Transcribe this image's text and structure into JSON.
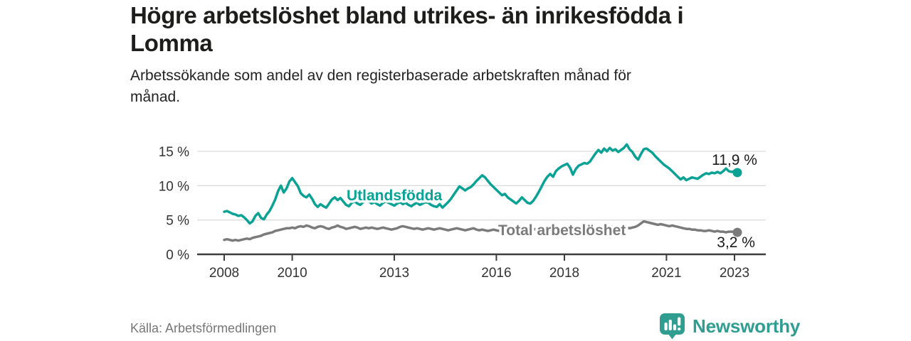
{
  "header": {
    "title_line1": "Högre arbetslöshet bland utrikes- än inrikesfödda i",
    "title_line2": "Lomma",
    "subtitle_line1": "Arbetssökande som andel av den registerbaserade arbetskraften månad för",
    "subtitle_line2": "månad."
  },
  "footer": {
    "source": "Källa: Arbetsförmedlingen",
    "brand": "Newsworthy",
    "brand_color": "#2f9e90"
  },
  "chart_data": {
    "type": "line",
    "x_interval": "monthly",
    "x_start_year": 2008,
    "x_start_month": 1,
    "x_end_label": "2023-02",
    "x_tick_years": [
      2008,
      2010,
      2013,
      2016,
      2018,
      2021,
      2023
    ],
    "y_ticks": [
      0,
      5,
      10,
      15
    ],
    "y_tick_suffix": " %",
    "ylim": [
      0,
      16.5
    ],
    "grid": true,
    "legend": "inline-labels",
    "axis_color": "#3d3d3d",
    "grid_color": "#dcdcdc",
    "tick_text_color": "#333333",
    "end_label_color": "#1a1a1a",
    "series": [
      {
        "name": "Utlandsfödda",
        "color": "#0aa294",
        "end_label": "11,9 %",
        "end_value": 11.9,
        "values": [
          6.2,
          6.3,
          6.1,
          5.9,
          5.8,
          5.6,
          5.7,
          5.4,
          5.0,
          4.5,
          4.8,
          5.6,
          6.0,
          5.3,
          5.1,
          5.8,
          6.3,
          7.1,
          8.0,
          9.2,
          10.0,
          9.0,
          9.6,
          10.6,
          11.1,
          10.5,
          9.9,
          8.9,
          8.5,
          8.3,
          8.7,
          8.1,
          7.3,
          6.9,
          7.3,
          7.0,
          6.8,
          7.4,
          8.0,
          8.3,
          7.9,
          8.2,
          7.7,
          7.2,
          7.0,
          7.5,
          7.7,
          7.4,
          7.2,
          7.6,
          7.9,
          7.7,
          7.4,
          7.6,
          7.3,
          7.1,
          7.5,
          7.7,
          7.5,
          7.3,
          7.1,
          7.4,
          7.6,
          7.3,
          7.5,
          7.2,
          7.0,
          7.3,
          7.5,
          7.2,
          7.4,
          7.6,
          7.5,
          7.2,
          7.0,
          6.9,
          7.3,
          6.8,
          7.2,
          7.6,
          8.1,
          8.7,
          9.3,
          9.9,
          9.6,
          9.3,
          9.6,
          9.8,
          10.2,
          10.7,
          11.1,
          11.5,
          11.2,
          10.7,
          10.2,
          9.8,
          9.4,
          9.0,
          8.6,
          8.8,
          8.3,
          8.0,
          7.7,
          7.4,
          7.8,
          8.3,
          7.9,
          7.5,
          7.4,
          7.8,
          8.4,
          9.1,
          9.9,
          10.7,
          11.3,
          11.7,
          11.3,
          12.1,
          12.5,
          12.8,
          13.0,
          13.2,
          12.6,
          11.6,
          12.4,
          12.9,
          13.1,
          13.3,
          13.2,
          13.5,
          14.1,
          14.7,
          15.2,
          14.8,
          15.4,
          15.0,
          15.5,
          15.1,
          15.3,
          14.9,
          15.2,
          15.5,
          16.0,
          15.3,
          14.9,
          14.2,
          13.8,
          14.6,
          15.3,
          15.4,
          15.1,
          14.8,
          14.3,
          13.9,
          13.5,
          13.1,
          12.8,
          12.5,
          12.1,
          11.7,
          11.3,
          10.9,
          11.2,
          10.8,
          11.0,
          11.2,
          11.1,
          11.0,
          11.3,
          11.6,
          11.8,
          11.7,
          11.9,
          11.8,
          12.0,
          11.8,
          12.1,
          12.5,
          12.1,
          12.0,
          12.1,
          11.9
        ]
      },
      {
        "name": "Total arbetslöshet",
        "color": "#7b7b7b",
        "end_label": "3,2 %",
        "end_value": 3.2,
        "values": [
          2.1,
          2.2,
          2.1,
          2.0,
          2.1,
          2.0,
          2.1,
          2.2,
          2.3,
          2.2,
          2.4,
          2.5,
          2.6,
          2.7,
          2.9,
          3.0,
          3.1,
          3.2,
          3.4,
          3.5,
          3.6,
          3.7,
          3.8,
          3.8,
          3.9,
          3.8,
          4.0,
          4.1,
          4.0,
          4.2,
          4.1,
          3.9,
          3.8,
          4.0,
          4.1,
          4.0,
          3.8,
          3.7,
          3.9,
          4.0,
          4.2,
          4.0,
          3.9,
          3.7,
          3.8,
          3.9,
          4.0,
          3.9,
          3.7,
          3.8,
          3.9,
          3.8,
          3.9,
          3.8,
          3.7,
          3.8,
          3.9,
          3.8,
          3.7,
          3.6,
          3.7,
          3.8,
          4.0,
          4.1,
          4.0,
          3.9,
          3.8,
          3.7,
          3.8,
          3.7,
          3.6,
          3.7,
          3.8,
          3.7,
          3.6,
          3.7,
          3.8,
          3.7,
          3.6,
          3.5,
          3.6,
          3.7,
          3.8,
          3.7,
          3.6,
          3.5,
          3.6,
          3.7,
          3.8,
          3.6,
          3.5,
          3.6,
          3.5,
          3.4,
          3.5,
          3.6,
          3.5,
          3.4,
          3.5,
          3.6,
          3.7,
          3.6,
          3.5,
          3.4,
          3.5,
          3.6,
          3.5,
          3.4,
          3.5,
          3.6,
          3.7,
          3.8,
          3.7,
          3.8,
          3.9,
          3.8,
          3.7,
          3.8,
          3.9,
          3.8,
          3.7,
          3.8,
          3.7,
          3.6,
          3.7,
          3.8,
          3.7,
          3.6,
          3.7,
          3.8,
          3.9,
          3.8,
          3.9,
          3.8,
          3.9,
          4.0,
          3.9,
          4.0,
          3.9,
          4.0,
          3.9,
          3.8,
          3.9,
          3.8,
          3.9,
          4.0,
          4.2,
          4.5,
          4.8,
          4.7,
          4.6,
          4.5,
          4.4,
          4.3,
          4.4,
          4.3,
          4.2,
          4.1,
          4.2,
          4.1,
          4.0,
          3.9,
          3.8,
          3.7,
          3.7,
          3.6,
          3.6,
          3.5,
          3.5,
          3.4,
          3.4,
          3.5,
          3.4,
          3.3,
          3.4,
          3.3,
          3.3,
          3.2,
          3.3,
          3.3,
          3.3,
          3.2
        ]
      }
    ]
  }
}
